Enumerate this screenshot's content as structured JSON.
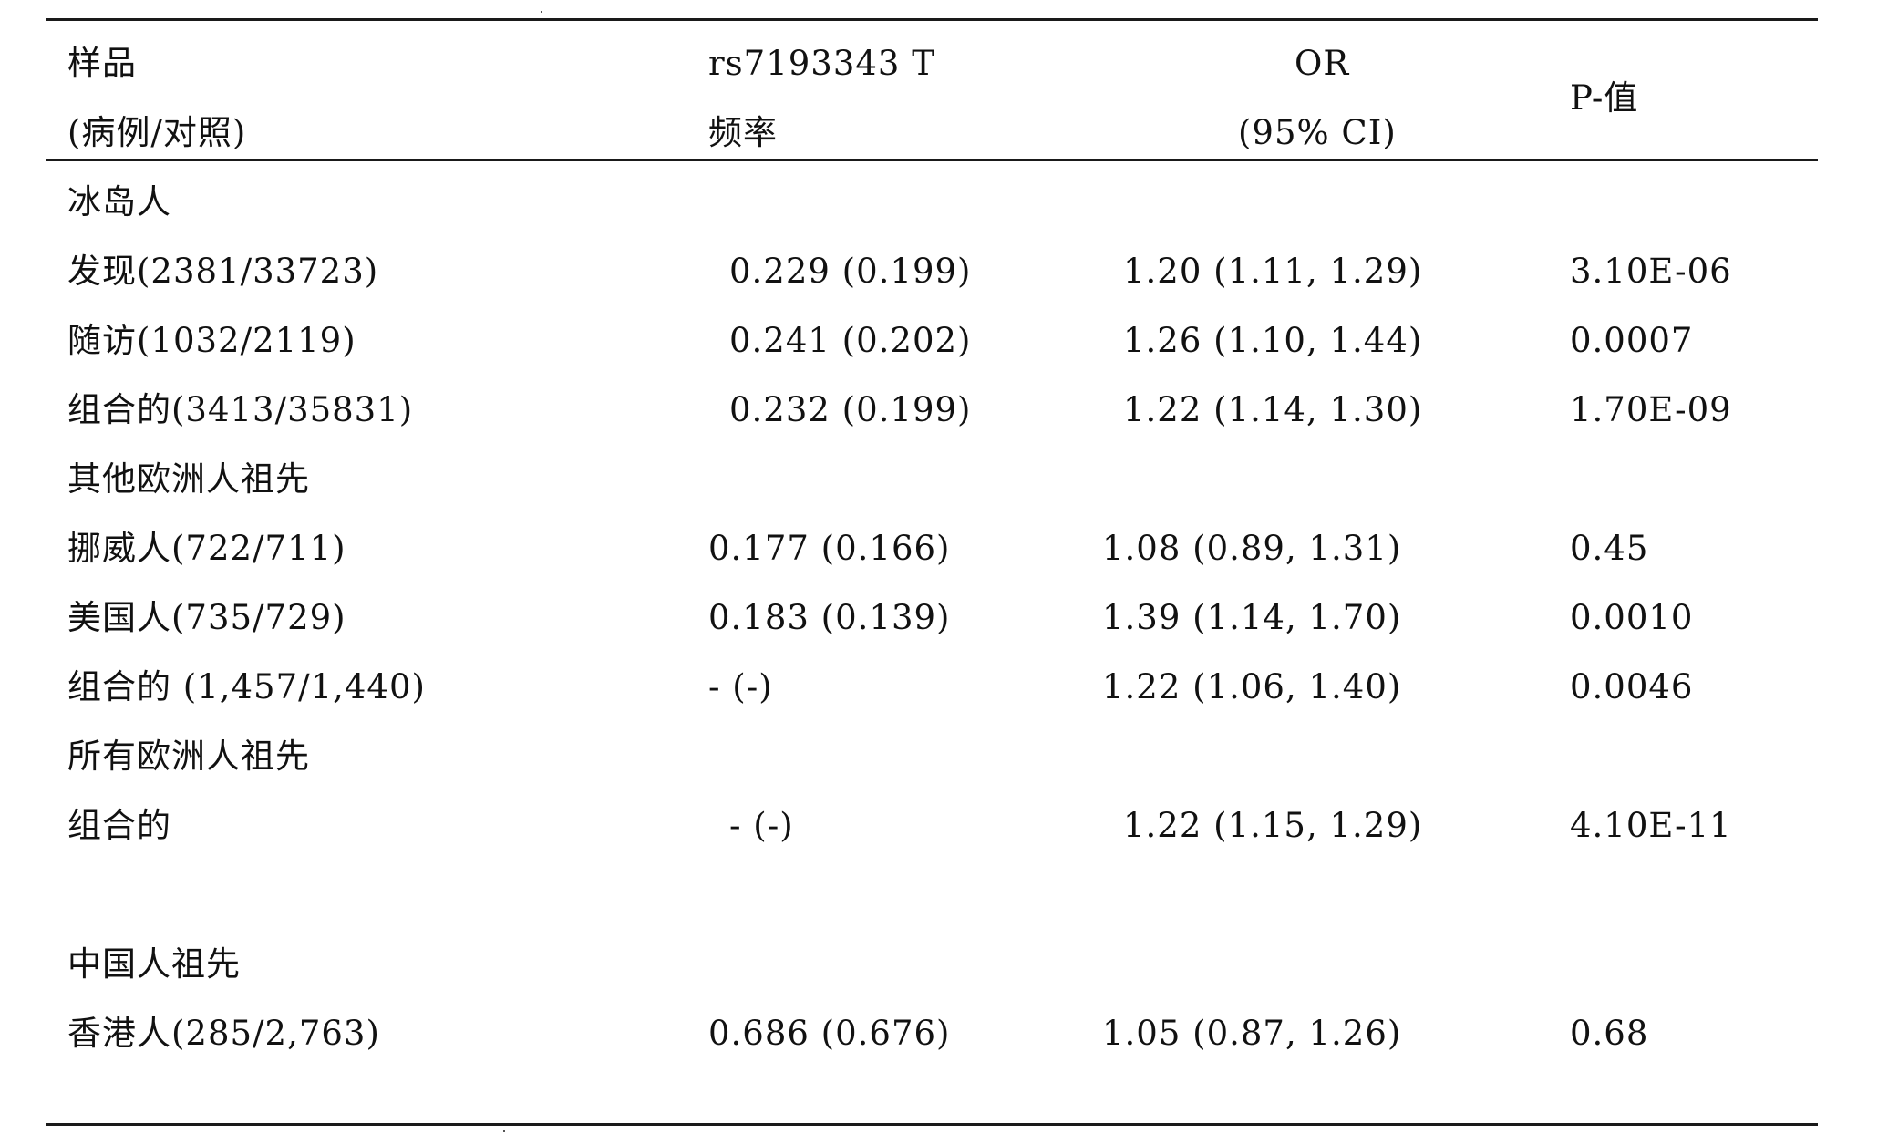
{
  "header": {
    "col1_line1": "样品",
    "col1_line2": "(病例/对照)",
    "col2_line1": "rs7193343 T",
    "col2_line2": "频率",
    "col3_line1": "OR",
    "col3_line2": "(95% CI)",
    "col4": "P-值"
  },
  "rows": [
    {
      "sample": "冰岛人"
    },
    {
      "sample": "发现(2381/33723)",
      "freq": "0.229 (0.199)",
      "or": "1.20 (1.11, 1.29)",
      "p": "3.10E-06"
    },
    {
      "sample": "随访(1032/2119)",
      "freq": "0.241 (0.202)",
      "or": "1.26 (1.10, 1.44)",
      "p": "0.0007"
    },
    {
      "sample": "组合的(3413/35831)",
      "freq": "0.232 (0.199)",
      "or": "1.22 (1.14, 1.30)",
      "p": "1.70E-09"
    },
    {
      "sample": "其他欧洲人祖先"
    },
    {
      "sample": "挪威人(722/711)",
      "freq": "0.177 (0.166)",
      "or": "1.08 (0.89, 1.31)",
      "p": "0.45"
    },
    {
      "sample": "美国人(735/729)",
      "freq": "0.183 (0.139)",
      "or": "1.39 (1.14, 1.70)",
      "p": "0.0010"
    },
    {
      "sample": "组合的 (1,457/1,440)",
      "freq": "- (-)",
      "or": "1.22 (1.06, 1.40)",
      "p": "0.0046"
    },
    {
      "sample": "所有欧洲人祖先"
    },
    {
      "sample": "组合的",
      "freq": "- (-)",
      "or": "1.22 (1.15, 1.29)",
      "p": "4.10E-11"
    },
    {
      "sample": "中国人祖先"
    },
    {
      "sample": "香港人(285/2,763)",
      "freq": "0.686 (0.676)",
      "or": "1.05 (0.87, 1.26)",
      "p": "0.68"
    }
  ]
}
